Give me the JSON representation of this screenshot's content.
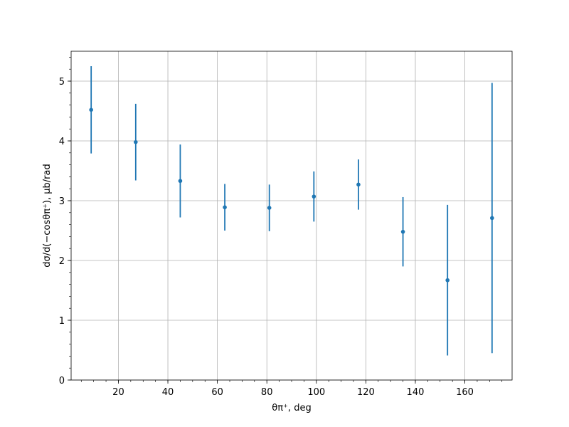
{
  "chart_data": {
    "type": "errorbar",
    "xlabel": "θπ⁺, deg",
    "ylabel": "dσ/d(−cosθπ⁺), μb/rad",
    "x": [
      9,
      27,
      45,
      63,
      81,
      99,
      117,
      135,
      153,
      171
    ],
    "series": [
      {
        "color": "#1f77b4",
        "values": [
          4.52,
          3.98,
          3.33,
          2.89,
          2.88,
          3.07,
          3.27,
          2.48,
          1.67,
          2.71
        ],
        "errors": [
          0.73,
          0.64,
          0.61,
          0.39,
          0.39,
          0.42,
          0.42,
          0.58,
          1.26,
          2.26
        ]
      }
    ],
    "xlim": [
      0.9,
      179.1
    ],
    "xticks": [
      20,
      40,
      60,
      80,
      100,
      120,
      140,
      160
    ],
    "ylim": [
      0,
      5.5
    ],
    "yticks": [
      0,
      1,
      2,
      3,
      4,
      5
    ],
    "grid": true,
    "minor_ticks": true
  }
}
